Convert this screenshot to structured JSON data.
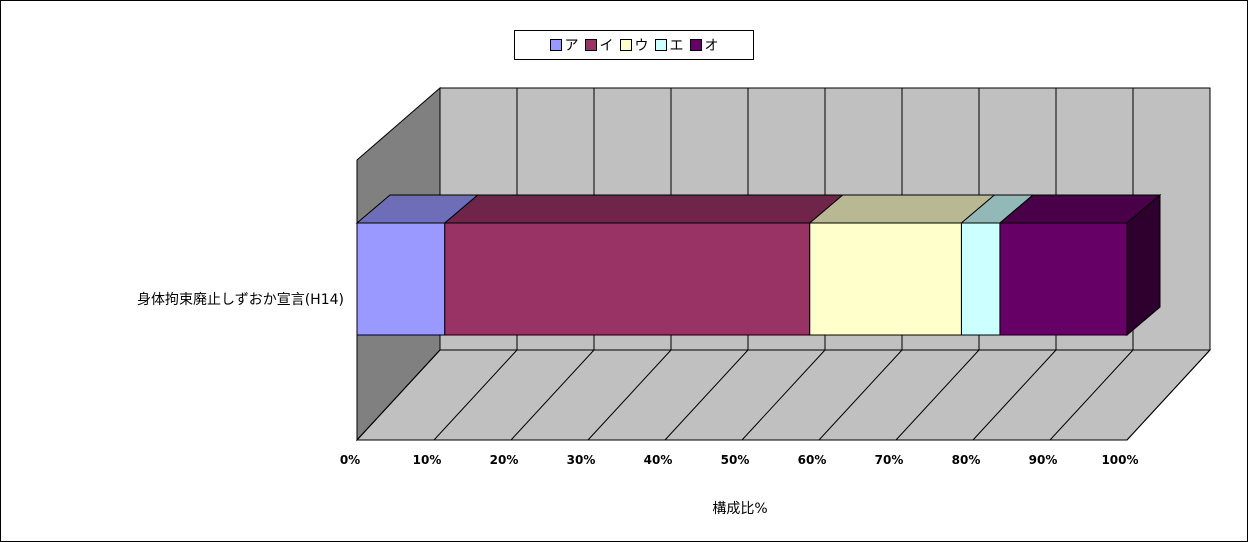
{
  "chart_data": {
    "type": "bar",
    "orientation": "horizontal",
    "stacked": "percent",
    "three_d": true,
    "categories": [
      "身体拘束廃止しずおか宣言(H14)"
    ],
    "series": [
      {
        "name": "ア",
        "color": "#9999ff",
        "values": [
          11.4
        ]
      },
      {
        "name": "イ",
        "color": "#993366",
        "values": [
          47.4
        ]
      },
      {
        "name": "ウ",
        "color": "#ffffcc",
        "values": [
          19.7
        ]
      },
      {
        "name": "エ",
        "color": "#ccffff",
        "values": [
          5.0
        ]
      },
      {
        "name": "オ",
        "color": "#660066",
        "values": [
          16.5
        ]
      }
    ],
    "xlabel": "構成比%",
    "ylabel": "",
    "xlim": [
      0,
      100
    ],
    "xticks": [
      "0%",
      "10%",
      "20%",
      "30%",
      "40%",
      "50%",
      "60%",
      "70%",
      "80%",
      "90%",
      "100%"
    ],
    "grid": true,
    "legend": "top-center"
  }
}
